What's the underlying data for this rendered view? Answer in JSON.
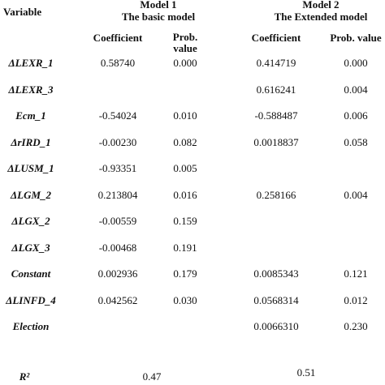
{
  "header": {
    "variable": "Variable",
    "models": [
      {
        "title": "Model 1",
        "subtitle": "The basic model",
        "coefficient": "Coefficient",
        "prob": "Prob. value"
      },
      {
        "title": "Model 2",
        "subtitle": "The Extended model",
        "coefficient": "Coefficient",
        "prob": "Prob. value"
      }
    ]
  },
  "table": {
    "rows": [
      [
        "ΔLEXR_1",
        "0.58740",
        "0.000",
        "0.414719",
        "0.000"
      ],
      [
        "ΔLEXR_3",
        null,
        null,
        "0.616241",
        "0.004"
      ],
      [
        "Ecm_1",
        "-0.54024",
        "0.010",
        "-0.588487",
        "0.006"
      ],
      [
        "ΔrIRD_1",
        "-0.00230",
        "0.082",
        "0.0018837",
        "0.058"
      ],
      [
        "ΔLUSM_1",
        "-0.93351",
        "0.005",
        null,
        null
      ],
      [
        "ΔLGM_2",
        "0.213804",
        "0.016",
        "0.258166",
        "0.004"
      ],
      [
        "ΔLGX_2",
        "-0.00559",
        "0.159",
        null,
        null
      ],
      [
        "ΔLGX_3",
        "-0.00468",
        "0.191",
        null,
        null
      ],
      [
        "Constant",
        "0.002936",
        "0.179",
        "0.0085343",
        "0.121"
      ],
      [
        "ΔLINFD_4",
        "0.042562",
        "0.030",
        "0.0568314",
        "0.012"
      ],
      [
        "Election",
        null,
        null,
        "0.0066310",
        "0.230"
      ]
    ]
  },
  "r_squared": {
    "label": "R²",
    "values": [
      "0.47",
      "0.51"
    ]
  }
}
